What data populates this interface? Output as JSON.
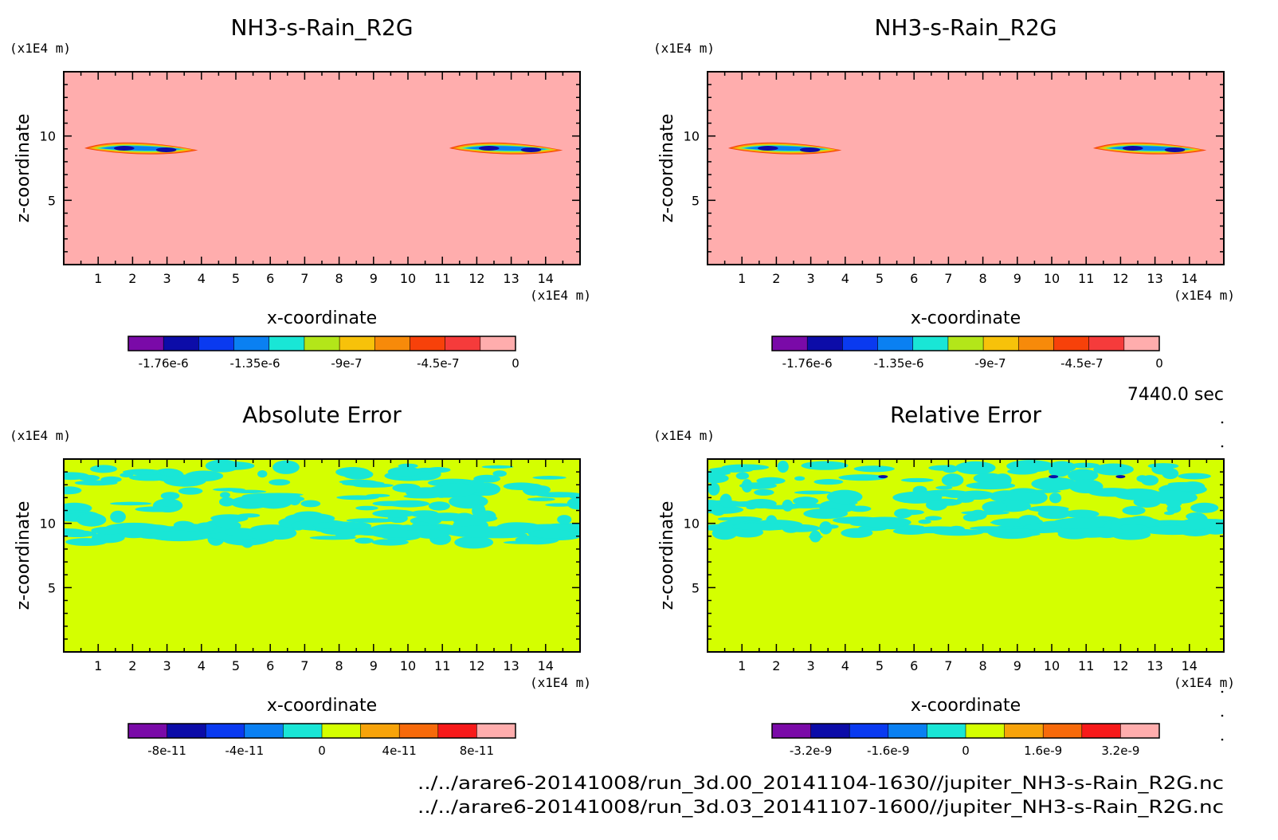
{
  "figure": {
    "timestamp": "7440.0 sec",
    "footer_lines": [
      "../../arare6-20141008/run_3d.00_20141104-1630//jupiter_NH3-s-Rain_R2G.nc",
      "../../arare6-20141008/run_3d.03_20141107-1600//jupiter_NH3-s-Rain_R2G.nc"
    ]
  },
  "chart_data": [
    {
      "type": "heatmap",
      "title": "NH3-s-Rain_R2G",
      "xlabel": "x-coordinate",
      "ylabel": "z-coordinate",
      "x_unit": "(x1E4 m)",
      "y_unit": "(x1E4 m)",
      "xlim": [
        0,
        15
      ],
      "ylim": [
        0,
        15
      ],
      "xticks": [
        1,
        2,
        3,
        4,
        5,
        6,
        7,
        8,
        9,
        10,
        11,
        12,
        13,
        14
      ],
      "yticks": [
        5,
        10
      ],
      "background_level": 0,
      "colorbar": {
        "colors": [
          "#7a0aa8",
          "#0c0ca8",
          "#0a3af0",
          "#0a80f2",
          "#19e6d6",
          "#b3e619",
          "#f7c20a",
          "#f78a0a",
          "#f7410a",
          "#f53b3b",
          "#ffadad"
        ],
        "tick_labels": [
          "-1.76e-6",
          "-1.35e-6",
          "-9e-7",
          "-4.5e-7",
          "0"
        ]
      },
      "features": [
        {
          "kind": "band",
          "x": [
            0.6,
            3.9
          ],
          "z": [
            8.6,
            9.5
          ],
          "peak_level": -1.6e-06
        },
        {
          "kind": "band",
          "x": [
            11.2,
            14.5
          ],
          "z": [
            8.6,
            9.5
          ],
          "peak_level": -1.6e-06
        }
      ]
    },
    {
      "type": "heatmap",
      "title": "NH3-s-Rain_R2G",
      "xlabel": "x-coordinate",
      "ylabel": "z-coordinate",
      "x_unit": "(x1E4 m)",
      "y_unit": "(x1E4 m)",
      "xlim": [
        0,
        15
      ],
      "ylim": [
        0,
        15
      ],
      "xticks": [
        1,
        2,
        3,
        4,
        5,
        6,
        7,
        8,
        9,
        10,
        11,
        12,
        13,
        14
      ],
      "yticks": [
        5,
        10
      ],
      "background_level": 0,
      "colorbar": {
        "colors": [
          "#7a0aa8",
          "#0c0ca8",
          "#0a3af0",
          "#0a80f2",
          "#19e6d6",
          "#b3e619",
          "#f7c20a",
          "#f78a0a",
          "#f7410a",
          "#f53b3b",
          "#ffadad"
        ],
        "tick_labels": [
          "-1.76e-6",
          "-1.35e-6",
          "-9e-7",
          "-4.5e-7",
          "0"
        ]
      },
      "features": [
        {
          "kind": "band",
          "x": [
            0.6,
            3.9
          ],
          "z": [
            8.6,
            9.5
          ],
          "peak_level": -1.6e-06
        },
        {
          "kind": "band",
          "x": [
            11.2,
            14.5
          ],
          "z": [
            8.6,
            9.5
          ],
          "peak_level": -1.6e-06
        }
      ]
    },
    {
      "type": "heatmap",
      "title": "Absolute Error",
      "xlabel": "x-coordinate",
      "ylabel": "z-coordinate",
      "x_unit": "(x1E4 m)",
      "y_unit": "(x1E4 m)",
      "xlim": [
        0,
        15
      ],
      "ylim": [
        0,
        15
      ],
      "xticks": [
        1,
        2,
        3,
        4,
        5,
        6,
        7,
        8,
        9,
        10,
        11,
        12,
        13,
        14
      ],
      "yticks": [
        5,
        10
      ],
      "background_level": 0,
      "colorbar": {
        "colors": [
          "#7a0aa8",
          "#0c0ca8",
          "#0a3af0",
          "#0a80f2",
          "#19e6d6",
          "#d4ff00",
          "#f7a30a",
          "#f76a0a",
          "#f71a1a",
          "#ffadad"
        ],
        "tick_labels": [
          "-8e-11",
          "-4e-11",
          "0",
          "4e-11",
          "8e-11"
        ]
      },
      "features": [
        {
          "kind": "noise_band",
          "z": [
            8.5,
            14.5
          ],
          "level": -1e-11
        }
      ]
    },
    {
      "type": "heatmap",
      "title": "Relative Error",
      "xlabel": "x-coordinate",
      "ylabel": "z-coordinate",
      "x_unit": "(x1E4 m)",
      "y_unit": "(x1E4 m)",
      "xlim": [
        0,
        15
      ],
      "ylim": [
        0,
        15
      ],
      "xticks": [
        1,
        2,
        3,
        4,
        5,
        6,
        7,
        8,
        9,
        10,
        11,
        12,
        13,
        14
      ],
      "yticks": [
        5,
        10
      ],
      "background_level": 0,
      "colorbar": {
        "colors": [
          "#7a0aa8",
          "#0c0ca8",
          "#0a3af0",
          "#0a80f2",
          "#19e6d6",
          "#d4ff00",
          "#f7a30a",
          "#f76a0a",
          "#f71a1a",
          "#ffadad"
        ],
        "tick_labels": [
          "-3.2e-9",
          "-1.6e-9",
          "0",
          "1.6e-9",
          "3.2e-9"
        ]
      },
      "features": [
        {
          "kind": "noise_band",
          "z": [
            8.8,
            14.5
          ],
          "level": -4e-10
        }
      ]
    }
  ]
}
